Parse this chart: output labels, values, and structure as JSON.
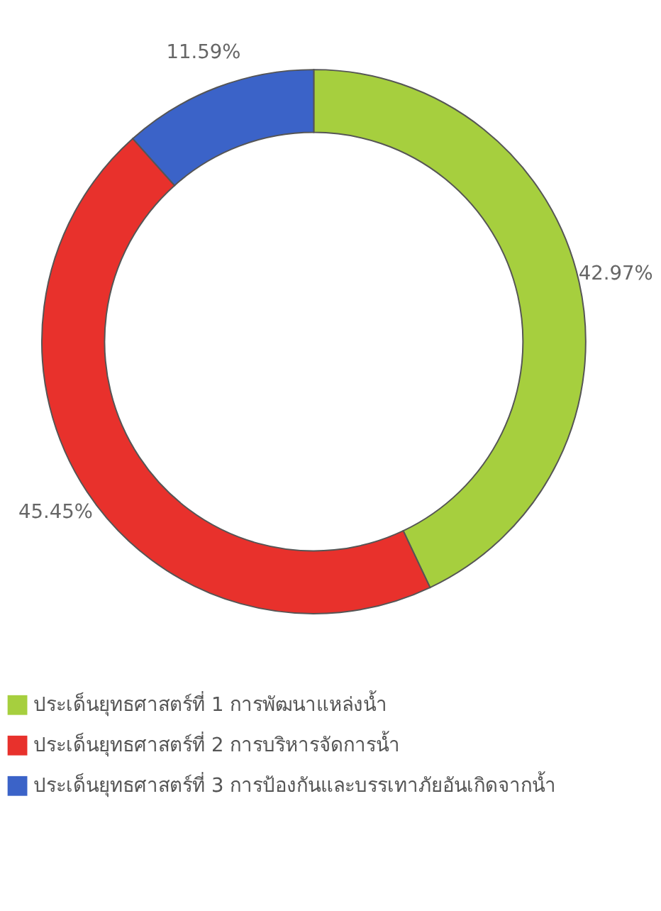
{
  "chart_data": {
    "type": "donut",
    "categories": [
      "ประเด็นยุทธศาสตร์ที่ 1 การพัฒนาแหล่งน้ำ",
      "ประเด็นยุทธศาสตร์ที่ 2 การบริหารจัดการน้ำ",
      "ประเด็นยุทธศาสตร์ที่ 3 การป้องกันและบรรเทาภัยอันเกิดจากน้ำ"
    ],
    "values": [
      42.97,
      45.45,
      11.59
    ],
    "colors": [
      "#a6cf3e",
      "#e8312c",
      "#3b63c8"
    ],
    "value_labels": [
      "42.97%",
      "45.45%",
      "11.59%"
    ],
    "legend": "bottom"
  }
}
